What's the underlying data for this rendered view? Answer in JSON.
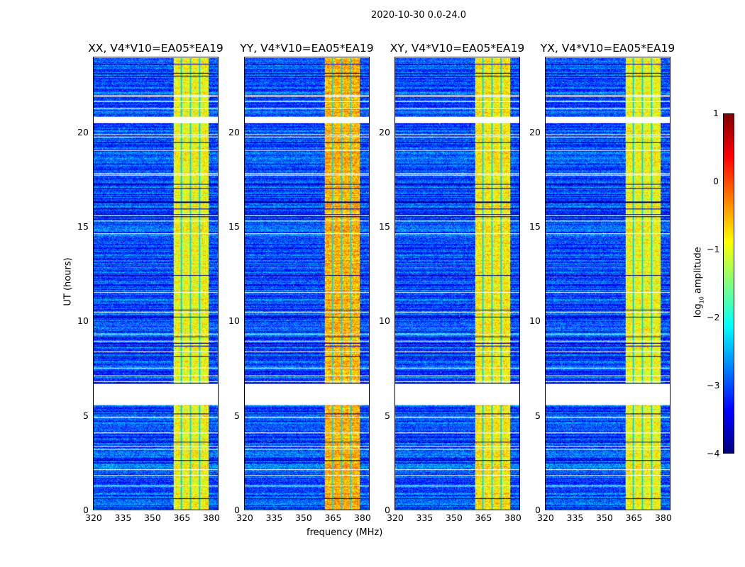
{
  "suptitle": "2020-10-30 0.0-24.0",
  "chart_data": {
    "type": "heatmap",
    "title": "2020-10-30 0.0-24.0",
    "xlabel": "frequency (MHz)",
    "ylabel": "UT (hours)",
    "xlim": [
      320,
      384
    ],
    "ylim": [
      0,
      24
    ],
    "xticks": [
      "320",
      "335",
      "350",
      "365",
      "380"
    ],
    "yticks": [
      "0",
      "5",
      "10",
      "15",
      "20"
    ],
    "panels": [
      {
        "title": "XX, V4*V10=EA05*EA19",
        "band_level": -0.9
      },
      {
        "title": "YY, V4*V10=EA05*EA19",
        "band_level": -0.5
      },
      {
        "title": "XY, V4*V10=EA05*EA19",
        "band_level": -0.8
      },
      {
        "title": "YX, V4*V10=EA05*EA19",
        "band_level": -0.9
      }
    ],
    "band_mhz": [
      361,
      379
    ],
    "background_level": -3.0,
    "flagged_hours": [
      [
        5.55,
        6.7
      ],
      [
        20.55,
        20.85
      ]
    ],
    "colorbar": {
      "label_main": "log",
      "label_sub": "10",
      "label_rest": " amplitude",
      "range": [
        -4,
        1
      ],
      "ticks": [
        "1",
        "0",
        "−1",
        "−2",
        "−3",
        "−4"
      ],
      "colormap": "jet"
    }
  }
}
